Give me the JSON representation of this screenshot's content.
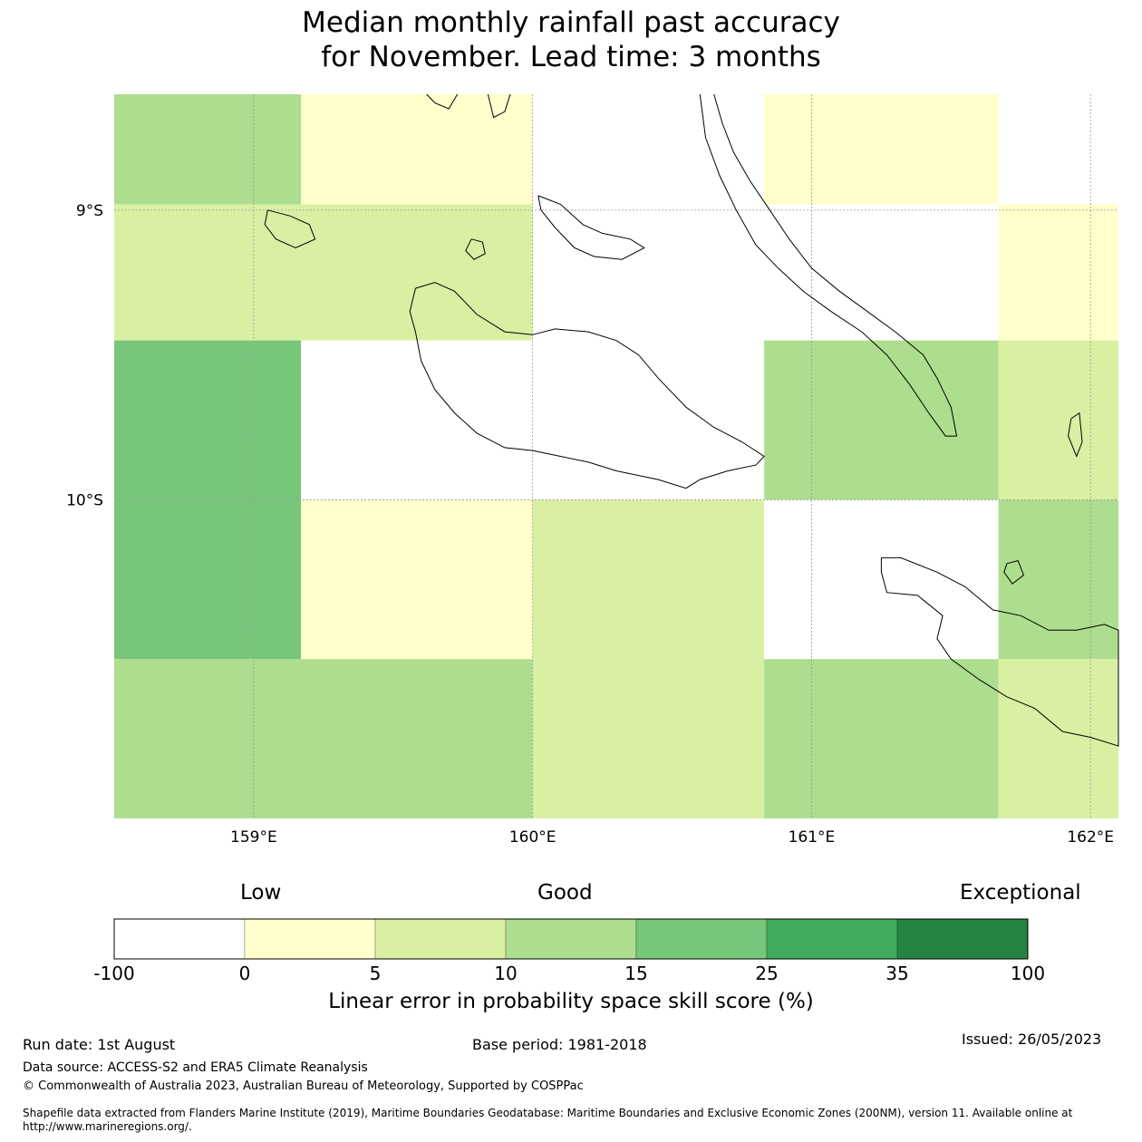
{
  "title": {
    "line1": "Median monthly rainfall past accuracy",
    "line2": "for November. Lead time: 3 months"
  },
  "map": {
    "lon_range": [
      158.5,
      162.1
    ],
    "lat_range": [
      -11.1,
      -8.6
    ],
    "lon_ticks": [
      {
        "value": 159,
        "label": "159°E"
      },
      {
        "value": 160,
        "label": "160°E"
      },
      {
        "value": 161,
        "label": "161°E"
      },
      {
        "value": 162,
        "label": "162°E"
      }
    ],
    "lat_ticks": [
      {
        "value": -9,
        "label": "9°S"
      },
      {
        "value": -10,
        "label": "10°S"
      }
    ],
    "cells": [
      {
        "lon0": 158.5,
        "lon1": 159.17,
        "lat0": -8.98,
        "lat1": -8.6,
        "category": "10-15"
      },
      {
        "lon0": 159.17,
        "lon1": 160.0,
        "lat0": -8.98,
        "lat1": -8.6,
        "category": "0-5"
      },
      {
        "lon0": 160.0,
        "lon1": 160.83,
        "lat0": -8.98,
        "lat1": -8.6,
        "category": "-100-0"
      },
      {
        "lon0": 160.83,
        "lon1": 161.67,
        "lat0": -8.98,
        "lat1": -8.6,
        "category": "0-5"
      },
      {
        "lon0": 161.67,
        "lon1": 162.1,
        "lat0": -8.98,
        "lat1": -8.6,
        "category": "-100-0"
      },
      {
        "lon0": 158.5,
        "lon1": 160.0,
        "lat0": -9.45,
        "lat1": -8.98,
        "category": "5-10"
      },
      {
        "lon0": 160.0,
        "lon1": 161.67,
        "lat0": -9.45,
        "lat1": -8.98,
        "category": "-100-0"
      },
      {
        "lon0": 161.67,
        "lon1": 162.1,
        "lat0": -9.45,
        "lat1": -8.98,
        "category": "0-5"
      },
      {
        "lon0": 158.5,
        "lon1": 159.17,
        "lat0": -10.0,
        "lat1": -9.45,
        "category": "15-25"
      },
      {
        "lon0": 159.17,
        "lon1": 160.83,
        "lat0": -10.0,
        "lat1": -9.45,
        "category": "-100-0"
      },
      {
        "lon0": 160.83,
        "lon1": 161.67,
        "lat0": -10.0,
        "lat1": -9.45,
        "category": "10-15"
      },
      {
        "lon0": 161.67,
        "lon1": 162.1,
        "lat0": -10.0,
        "lat1": -9.45,
        "category": "5-10"
      },
      {
        "lon0": 158.5,
        "lon1": 159.17,
        "lat0": -10.55,
        "lat1": -10.0,
        "category": "15-25"
      },
      {
        "lon0": 159.17,
        "lon1": 160.0,
        "lat0": -10.55,
        "lat1": -10.0,
        "category": "0-5"
      },
      {
        "lon0": 160.0,
        "lon1": 160.83,
        "lat0": -10.55,
        "lat1": -10.0,
        "category": "5-10"
      },
      {
        "lon0": 160.83,
        "lon1": 161.67,
        "lat0": -10.55,
        "lat1": -10.0,
        "category": "-100-0"
      },
      {
        "lon0": 161.67,
        "lon1": 162.1,
        "lat0": -10.55,
        "lat1": -10.0,
        "category": "10-15"
      },
      {
        "lon0": 158.5,
        "lon1": 160.0,
        "lat0": -11.1,
        "lat1": -10.55,
        "category": "10-15"
      },
      {
        "lon0": 160.0,
        "lon1": 160.83,
        "lat0": -11.1,
        "lat1": -10.55,
        "category": "5-10"
      },
      {
        "lon0": 160.83,
        "lon1": 161.67,
        "lat0": -11.1,
        "lat1": -10.55,
        "category": "10-15"
      },
      {
        "lon0": 161.67,
        "lon1": 162.1,
        "lat0": -11.1,
        "lat1": -10.55,
        "category": "5-10"
      }
    ],
    "coastlines": [
      {
        "name": "guadalcanal",
        "points": [
          [
            159.58,
            -9.27
          ],
          [
            159.65,
            -9.25
          ],
          [
            159.72,
            -9.28
          ],
          [
            159.8,
            -9.36
          ],
          [
            159.9,
            -9.42
          ],
          [
            160.0,
            -9.43
          ],
          [
            160.08,
            -9.41
          ],
          [
            160.2,
            -9.42
          ],
          [
            160.3,
            -9.45
          ],
          [
            160.38,
            -9.5
          ],
          [
            160.45,
            -9.58
          ],
          [
            160.55,
            -9.68
          ],
          [
            160.65,
            -9.75
          ],
          [
            160.75,
            -9.8
          ],
          [
            160.83,
            -9.85
          ],
          [
            160.8,
            -9.88
          ],
          [
            160.7,
            -9.9
          ],
          [
            160.6,
            -9.93
          ],
          [
            160.55,
            -9.96
          ],
          [
            160.45,
            -9.93
          ],
          [
            160.3,
            -9.9
          ],
          [
            160.2,
            -9.87
          ],
          [
            160.1,
            -9.85
          ],
          [
            160.0,
            -9.83
          ],
          [
            159.9,
            -9.82
          ],
          [
            159.8,
            -9.77
          ],
          [
            159.72,
            -9.7
          ],
          [
            159.65,
            -9.62
          ],
          [
            159.6,
            -9.52
          ],
          [
            159.58,
            -9.42
          ],
          [
            159.56,
            -9.35
          ],
          [
            159.58,
            -9.27
          ]
        ]
      },
      {
        "name": "malaita",
        "points": [
          [
            160.65,
            -8.6
          ],
          [
            160.68,
            -8.7
          ],
          [
            160.72,
            -8.8
          ],
          [
            160.78,
            -8.9
          ],
          [
            160.85,
            -9.0
          ],
          [
            160.92,
            -9.1
          ],
          [
            161.0,
            -9.2
          ],
          [
            161.1,
            -9.28
          ],
          [
            161.2,
            -9.35
          ],
          [
            161.3,
            -9.42
          ],
          [
            161.4,
            -9.5
          ],
          [
            161.45,
            -9.58
          ],
          [
            161.5,
            -9.68
          ],
          [
            161.52,
            -9.78
          ],
          [
            161.48,
            -9.78
          ],
          [
            161.42,
            -9.7
          ],
          [
            161.35,
            -9.6
          ],
          [
            161.27,
            -9.5
          ],
          [
            161.18,
            -9.42
          ],
          [
            161.07,
            -9.35
          ],
          [
            160.97,
            -9.28
          ],
          [
            160.88,
            -9.2
          ],
          [
            160.8,
            -9.12
          ],
          [
            160.73,
            -9.0
          ],
          [
            160.67,
            -8.88
          ],
          [
            160.62,
            -8.75
          ],
          [
            160.6,
            -8.6
          ]
        ]
      },
      {
        "name": "makira",
        "points": [
          [
            161.25,
            -10.2
          ],
          [
            161.32,
            -10.2
          ],
          [
            161.45,
            -10.25
          ],
          [
            161.55,
            -10.3
          ],
          [
            161.65,
            -10.38
          ],
          [
            161.75,
            -10.4
          ],
          [
            161.85,
            -10.45
          ],
          [
            161.95,
            -10.45
          ],
          [
            162.05,
            -10.43
          ],
          [
            162.1,
            -10.45
          ],
          [
            162.1,
            -10.85
          ],
          [
            162.0,
            -10.82
          ],
          [
            161.9,
            -10.8
          ],
          [
            161.8,
            -10.72
          ],
          [
            161.7,
            -10.68
          ],
          [
            161.6,
            -10.62
          ],
          [
            161.5,
            -10.55
          ],
          [
            161.45,
            -10.48
          ],
          [
            161.47,
            -10.4
          ],
          [
            161.38,
            -10.33
          ],
          [
            161.27,
            -10.32
          ],
          [
            161.25,
            -10.25
          ],
          [
            161.25,
            -10.2
          ]
        ]
      },
      {
        "name": "nggela",
        "points": [
          [
            160.02,
            -8.95
          ],
          [
            160.1,
            -8.98
          ],
          [
            160.18,
            -9.05
          ],
          [
            160.25,
            -9.08
          ],
          [
            160.35,
            -9.1
          ],
          [
            160.4,
            -9.13
          ],
          [
            160.32,
            -9.17
          ],
          [
            160.22,
            -9.16
          ],
          [
            160.15,
            -9.13
          ],
          [
            160.08,
            -9.06
          ],
          [
            160.03,
            -9.0
          ],
          [
            160.02,
            -8.95
          ]
        ]
      },
      {
        "name": "savo",
        "points": [
          [
            159.78,
            -9.1
          ],
          [
            159.82,
            -9.11
          ],
          [
            159.83,
            -9.15
          ],
          [
            159.79,
            -9.17
          ],
          [
            159.76,
            -9.14
          ],
          [
            159.78,
            -9.1
          ]
        ]
      },
      {
        "name": "russell",
        "points": [
          [
            159.05,
            -9.0
          ],
          [
            159.13,
            -9.02
          ],
          [
            159.2,
            -9.05
          ],
          [
            159.22,
            -9.1
          ],
          [
            159.15,
            -9.13
          ],
          [
            159.08,
            -9.1
          ],
          [
            159.04,
            -9.05
          ],
          [
            159.05,
            -9.0
          ]
        ]
      },
      {
        "name": "ulawa",
        "points": [
          [
            161.93,
            -9.72
          ],
          [
            161.96,
            -9.7
          ],
          [
            161.97,
            -9.8
          ],
          [
            161.95,
            -9.85
          ],
          [
            161.92,
            -9.78
          ],
          [
            161.93,
            -9.72
          ]
        ]
      },
      {
        "name": "ugi",
        "points": [
          [
            161.7,
            -10.22
          ],
          [
            161.74,
            -10.21
          ],
          [
            161.76,
            -10.26
          ],
          [
            161.72,
            -10.29
          ],
          [
            161.69,
            -10.25
          ],
          [
            161.7,
            -10.22
          ]
        ]
      },
      {
        "name": "nw-fragment",
        "points": [
          [
            159.62,
            -8.6
          ],
          [
            159.65,
            -8.63
          ],
          [
            159.7,
            -8.65
          ],
          [
            159.73,
            -8.6
          ]
        ]
      },
      {
        "name": "nw-fragment-2",
        "points": [
          [
            159.84,
            -8.6
          ],
          [
            159.86,
            -8.68
          ],
          [
            159.9,
            -8.66
          ],
          [
            159.92,
            -8.6
          ]
        ]
      }
    ]
  },
  "legend": {
    "labels": {
      "low": "Low",
      "good": "Good",
      "exceptional": "Exceptional"
    },
    "ticks": [
      "-100",
      "0",
      "5",
      "10",
      "15",
      "25",
      "35",
      "100"
    ],
    "bins": [
      {
        "key": "-100-0",
        "color": "#ffffff"
      },
      {
        "key": "0-5",
        "color": "#ffffcc"
      },
      {
        "key": "5-10",
        "color": "#d9f0a3"
      },
      {
        "key": "10-15",
        "color": "#addd8e"
      },
      {
        "key": "15-25",
        "color": "#78c679"
      },
      {
        "key": "25-35",
        "color": "#41ab5d"
      },
      {
        "key": "35-100",
        "color": "#238443"
      }
    ],
    "title": "Linear error in probability space skill score (%)"
  },
  "footer": {
    "run_date": "Run date: 1st August",
    "base_period": "Base period: 1981-2018",
    "issued": "Issued: 26/05/2023",
    "data_source": "Data source: ACCESS-S2 and ERA5 Climate Reanalysis",
    "copyright": "© Commonwealth of Australia 2023, Australian Bureau of Meteorology, Supported by COSPPac",
    "shapefile_line1": "Shapefile data extracted from Flanders Marine Institute (2019), Maritime Boundaries Geodatabase: Maritime Boundaries and Exclusive Economic Zones (200NM), version 11. Available online at",
    "shapefile_line2": "http://www.marineregions.org/."
  }
}
